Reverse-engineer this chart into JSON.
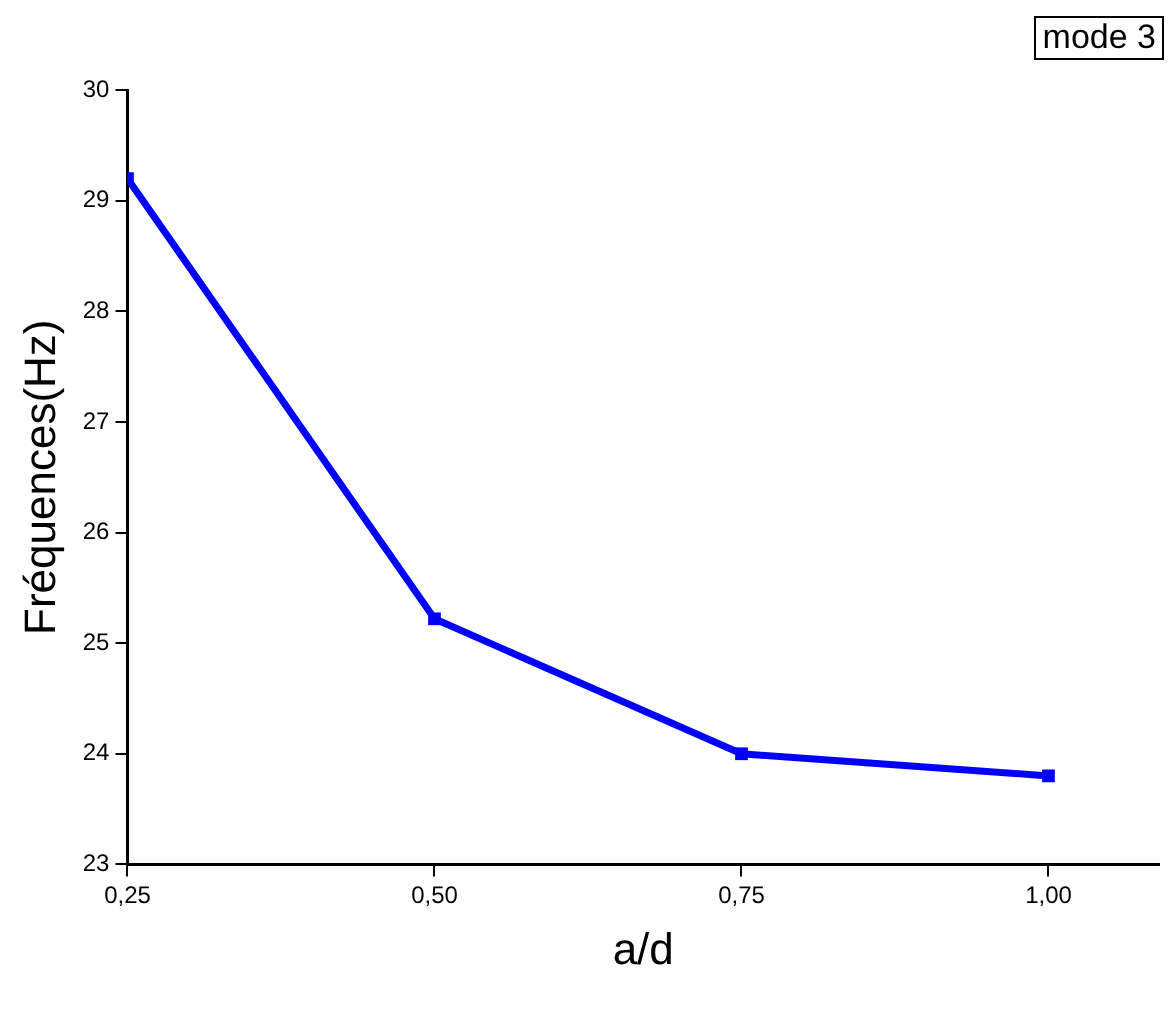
{
  "chart_data": {
    "type": "line",
    "xlabel": "a/d",
    "ylabel": "Fréquences(Hz)",
    "annotations": [
      "mode 3"
    ],
    "x": [
      0.25,
      0.5,
      0.75,
      1.0
    ],
    "series": [
      {
        "color": "#0000ff",
        "values": [
          29.2,
          25.22,
          24.0,
          23.8
        ]
      }
    ],
    "xlim": [
      0.25,
      1.09
    ],
    "xticks": [
      {
        "value": 0.25,
        "label": "0,25"
      },
      {
        "value": 0.5,
        "label": "0,50"
      },
      {
        "value": 0.75,
        "label": "0,75"
      },
      {
        "value": 1.0,
        "label": "1,00"
      }
    ],
    "ylim": [
      23,
      30
    ],
    "yticks": [
      23,
      24,
      25,
      26,
      27,
      28,
      29,
      30
    ],
    "grid": false,
    "legend": false,
    "marker": "square",
    "line_style": "solid"
  }
}
